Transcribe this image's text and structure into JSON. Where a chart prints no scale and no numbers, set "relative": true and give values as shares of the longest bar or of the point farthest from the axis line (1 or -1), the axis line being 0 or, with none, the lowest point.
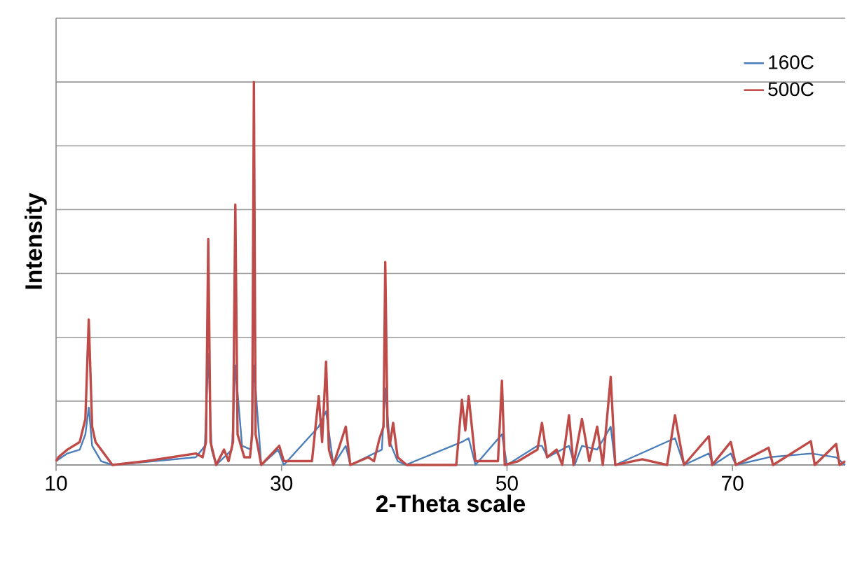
{
  "chart_data": {
    "type": "line",
    "xlabel": "2-Theta scale",
    "ylabel": "Intensity",
    "xlim": [
      10,
      80
    ],
    "xticks": [
      10,
      30,
      50,
      70
    ],
    "relative": true,
    "grid": "y",
    "legend": "top right",
    "series": [
      {
        "name": "160C",
        "color": "#4a7ebb",
        "x": [
          10,
          11,
          12.1,
          12.6,
          12.9,
          13.2,
          14,
          15,
          22.4,
          23.2,
          23.5,
          23.8,
          24.2,
          25.6,
          25.9,
          26.5,
          27.3,
          27.55,
          28.2,
          29.7,
          30.2,
          33.3,
          33.95,
          34.6,
          35.7,
          36.1,
          38.9,
          39.2,
          39.6,
          40.3,
          41,
          46,
          46.6,
          47.2,
          49.55,
          50,
          52.7,
          53.1,
          53.6,
          55.5,
          56,
          56.65,
          58,
          59.2,
          59.6,
          64.9,
          65.7,
          67.9,
          68.3,
          69.85,
          70.3,
          73.2,
          77,
          79.2,
          80
        ],
        "values": [
          0.01,
          0.03,
          0.04,
          0.08,
          0.15,
          0.05,
          0.01,
          0,
          0.02,
          0.05,
          0.29,
          0.04,
          0,
          0.04,
          0.26,
          0.05,
          0.04,
          0.26,
          0,
          0.04,
          0,
          0.1,
          0.14,
          0,
          0.05,
          0,
          0.04,
          0.2,
          0.06,
          0.01,
          0,
          0.06,
          0.07,
          0,
          0.08,
          0,
          0.05,
          0.05,
          0.02,
          0.05,
          0,
          0.05,
          0.04,
          0.1,
          0,
          0.07,
          0,
          0.03,
          0,
          0.03,
          0,
          0.02,
          0.03,
          0.02,
          0
        ]
      },
      {
        "name": "500C",
        "color": "#be4b48",
        "x": [
          10,
          10.2,
          11,
          12.1,
          12.6,
          12.9,
          13.2,
          13.5,
          14.5,
          15,
          18,
          22.4,
          23,
          23.3,
          23.5,
          23.7,
          24.2,
          24.9,
          25.3,
          25.7,
          25.9,
          26.1,
          26.3,
          26.7,
          27.2,
          27.4,
          27.55,
          27.7,
          28.2,
          29.8,
          30.2,
          32.7,
          33.3,
          33.6,
          33.95,
          34.2,
          34.6,
          35.7,
          36.1,
          37.7,
          38.2,
          38.7,
          39.05,
          39.2,
          39.4,
          39.6,
          39.9,
          40.3,
          41.1,
          45.5,
          46,
          46.3,
          46.6,
          47.2,
          49.2,
          49.55,
          49.8,
          51,
          52.7,
          53.1,
          53.55,
          54.4,
          54.9,
          55.5,
          55.9,
          56.65,
          57.3,
          58,
          58.5,
          59.2,
          59.6,
          62,
          64.2,
          64.9,
          65.2,
          65.7,
          67.9,
          68.2,
          69.85,
          70.3,
          73.2,
          73.6,
          76.95,
          77.3,
          79.2,
          79.5,
          80
        ],
        "values": [
          0.01,
          0.02,
          0.04,
          0.06,
          0.12,
          0.38,
          0.1,
          0.06,
          0.02,
          0,
          0.01,
          0.03,
          0.02,
          0.06,
          0.59,
          0.06,
          0,
          0.04,
          0.01,
          0.06,
          0.68,
          0.08,
          0.06,
          0.02,
          0.02,
          0.08,
          1.0,
          0.08,
          0,
          0.05,
          0.01,
          0.01,
          0.18,
          0.06,
          0.27,
          0.04,
          0,
          0.1,
          0,
          0.02,
          0.01,
          0.07,
          0.1,
          0.53,
          0.1,
          0.05,
          0.11,
          0.02,
          0,
          0,
          0.17,
          0.09,
          0.18,
          0.01,
          0.01,
          0.22,
          0,
          0.01,
          0.04,
          0.11,
          0.02,
          0.04,
          0,
          0.13,
          0,
          0.12,
          0.01,
          0.1,
          0,
          0.23,
          0,
          0.015,
          0,
          0.13,
          0.08,
          0,
          0.075,
          0,
          0.06,
          0,
          0.045,
          0,
          0.062,
          0,
          0.055,
          0,
          0.01
        ]
      }
    ]
  }
}
